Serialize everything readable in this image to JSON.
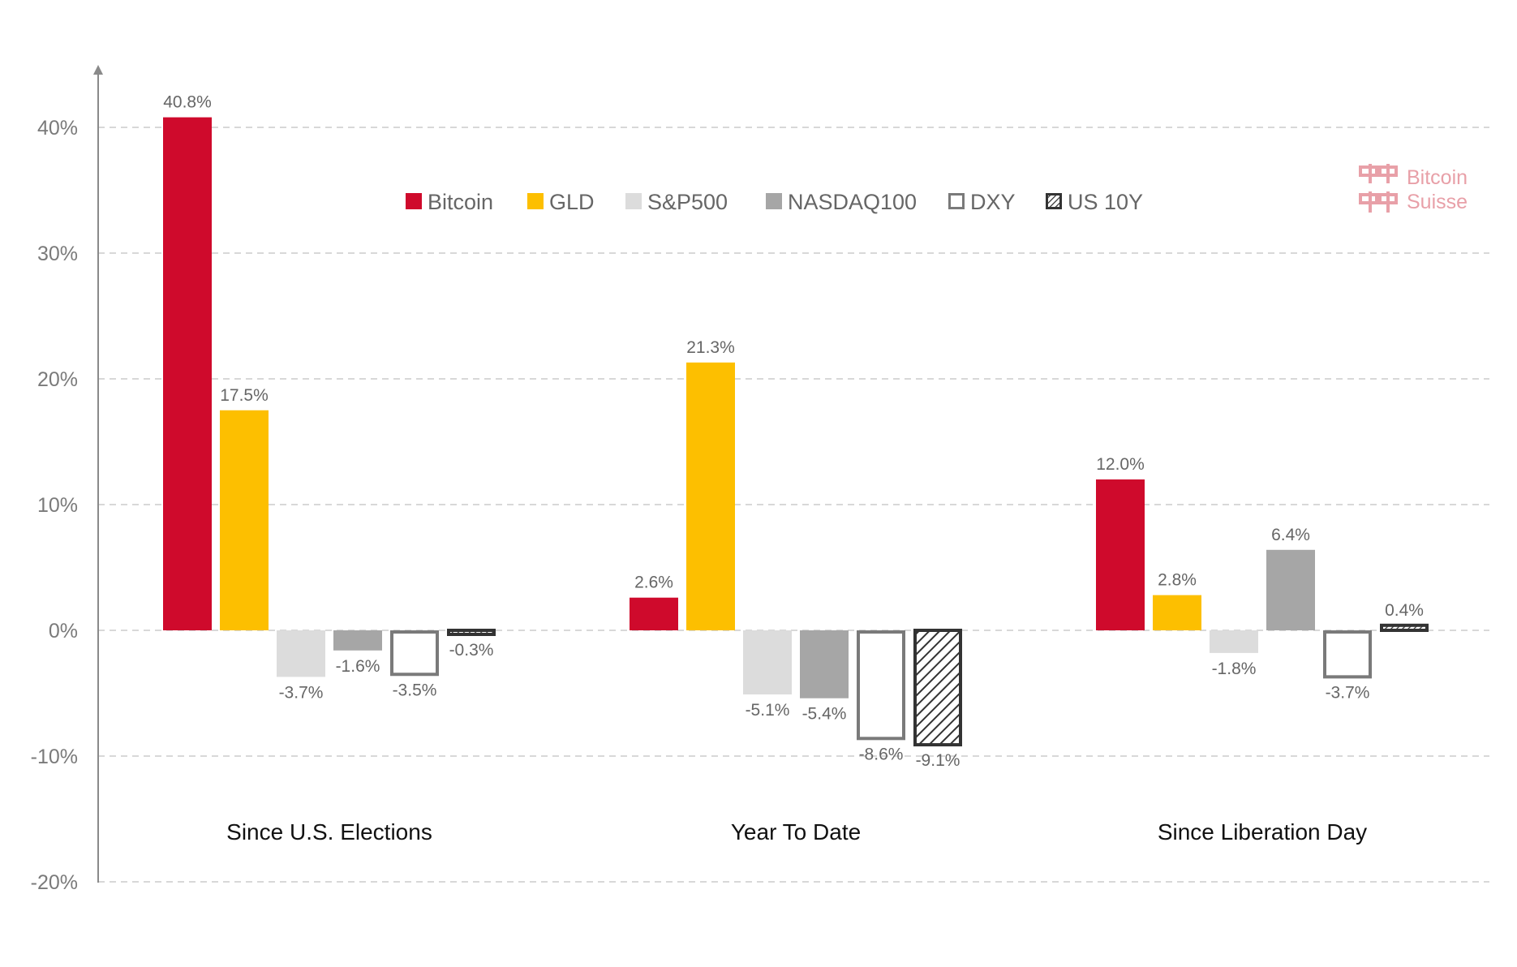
{
  "chart_data": {
    "type": "bar",
    "categories": [
      "Since U.S. Elections",
      "Year To Date",
      "Since Liberation Day"
    ],
    "series": [
      {
        "name": "Bitcoin",
        "values": [
          40.8,
          2.6,
          12.0
        ],
        "labels": [
          "40.8%",
          "2.6%",
          "12.0%"
        ],
        "style": "solid",
        "color": "#cf0a2c"
      },
      {
        "name": "GLD",
        "values": [
          17.5,
          21.3,
          2.8
        ],
        "labels": [
          "17.5%",
          "21.3%",
          "2.8%"
        ],
        "style": "solid",
        "color": "#fdbf00"
      },
      {
        "name": "S&P500",
        "values": [
          -3.7,
          -5.1,
          -1.8
        ],
        "labels": [
          "-3.7%",
          "-5.1%",
          "-1.8%"
        ],
        "style": "solid",
        "color": "#dcdcdc"
      },
      {
        "name": "NASDAQ100",
        "values": [
          -1.6,
          -5.4,
          6.4
        ],
        "labels": [
          "-1.6%",
          "-5.4%",
          "6.4%"
        ],
        "style": "solid",
        "color": "#a6a6a6"
      },
      {
        "name": "DXY",
        "values": [
          -3.5,
          -8.6,
          -3.7
        ],
        "labels": [
          "-3.5%",
          "-8.6%",
          "-3.7%"
        ],
        "style": "outline",
        "color": "#7a7a7a"
      },
      {
        "name": "US 10Y",
        "values": [
          -0.3,
          -9.1,
          0.4
        ],
        "labels": [
          "-0.3%",
          "-9.1%",
          "0.4%"
        ],
        "style": "hatched",
        "color": "#333333"
      }
    ],
    "yticks": [
      "40%",
      "30%",
      "20%",
      "10%",
      "0%",
      "-10%",
      "-20%"
    ],
    "ylim": [
      -20,
      40
    ],
    "grid": true,
    "legend_position": "top-center",
    "title": "",
    "xlabel": "",
    "ylabel": ""
  },
  "watermark": {
    "line1": "Bitcoin",
    "line2": "Suisse",
    "color": "#e8a0a8"
  }
}
